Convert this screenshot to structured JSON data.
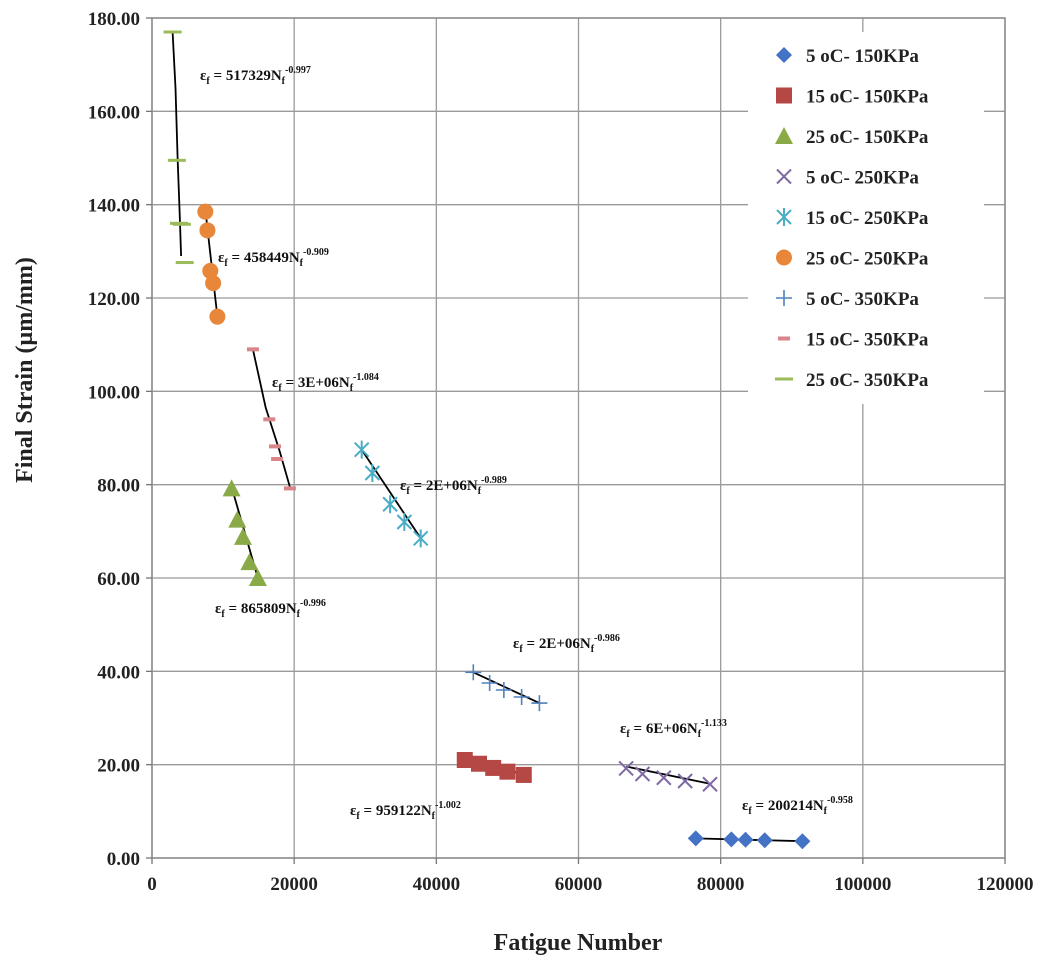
{
  "chart_data": {
    "type": "scatter",
    "title": "",
    "xlabel": "Fatigue Number",
    "ylabel": "Final Strain (µm/mm)",
    "xlim": [
      0,
      120000
    ],
    "ylim": [
      0,
      180
    ],
    "x_ticks": [
      "0",
      "20000",
      "40000",
      "60000",
      "80000",
      "100000",
      "120000"
    ],
    "y_ticks": [
      "0.00",
      "20.00",
      "40.00",
      "60.00",
      "80.00",
      "100.00",
      "120.00",
      "140.00",
      "160.00",
      "180.00"
    ],
    "grid": true,
    "legend_position": "top-right",
    "series": [
      {
        "name": "5 oC- 150KPa",
        "marker": "diamond",
        "color": "#4472c4",
        "x": [
          76500,
          81500,
          83500,
          86200,
          91500
        ],
        "y": [
          4.2,
          4.0,
          3.9,
          3.8,
          3.6
        ],
        "trend": {
          "x": [
            76500,
            91500
          ],
          "y": [
            4.2,
            3.6
          ]
        },
        "equation": {
          "coef": "200214",
          "exp": "-0.958"
        }
      },
      {
        "name": "15 oC- 150KPa",
        "marker": "square",
        "color": "#b54745",
        "x": [
          44000,
          46000,
          48000,
          50000,
          52300
        ],
        "y": [
          21.0,
          20.2,
          19.3,
          18.5,
          17.8
        ],
        "trend": {
          "x": [
            44000,
            52300
          ],
          "y": [
            21.3,
            17.9
          ]
        },
        "equation": {
          "coef": "959122",
          "exp": "-1.002"
        }
      },
      {
        "name": "25 oC- 150KPa",
        "marker": "triangle",
        "color": "#8aa947",
        "x": [
          11200,
          12000,
          12800,
          13700,
          14900
        ],
        "y": [
          79.2,
          72.5,
          68.8,
          63.4,
          60.0
        ],
        "trend": {
          "x": [
            11200,
            14900
          ],
          "y": [
            79.5,
            60.0
          ]
        },
        "equation": {
          "coef": "865809",
          "exp": "-0.996"
        }
      },
      {
        "name": "5 oC- 250KPa",
        "marker": "x",
        "color": "#7f6aa3",
        "x": [
          66700,
          69000,
          72000,
          75000,
          78500
        ],
        "y": [
          19.2,
          18.0,
          17.2,
          16.5,
          15.8
        ],
        "trend": {
          "x": [
            66700,
            78500
          ],
          "y": [
            19.6,
            15.9
          ]
        },
        "equation": {
          "coef": "6E+06",
          "exp": "-1.133"
        }
      },
      {
        "name": "15 oC- 250KPa",
        "marker": "star",
        "color": "#4bacc6",
        "x": [
          29500,
          31000,
          33500,
          35500,
          37800
        ],
        "y": [
          87.5,
          82.5,
          75.8,
          72.0,
          68.5
        ],
        "trend": {
          "x": [
            29500,
            37800
          ],
          "y": [
            87.5,
            68.5
          ]
        },
        "equation": {
          "coef": "2E+06",
          "exp": "-0.989"
        }
      },
      {
        "name": "25 oC- 250KPa",
        "marker": "circle",
        "color": "#e8863a",
        "x": [
          7500,
          7800,
          8200,
          8600,
          9200
        ],
        "y": [
          138.5,
          134.5,
          125.8,
          123.2,
          116.0
        ],
        "trend": {
          "x": [
            7500,
            9200
          ],
          "y": [
            139.0,
            116.0
          ]
        },
        "equation": {
          "coef": "458449",
          "exp": "-0.909"
        }
      },
      {
        "name": "5 oC- 350KPa",
        "marker": "plus",
        "color": "#4f81bd",
        "x": [
          45200,
          47500,
          49500,
          52000,
          54500
        ],
        "y": [
          39.8,
          37.5,
          36.0,
          34.5,
          33.2
        ],
        "trend": {
          "x": [
            45200,
            54500
          ],
          "y": [
            39.8,
            33.2
          ]
        },
        "equation": {
          "coef": "2E+06",
          "exp": "-0.986"
        }
      },
      {
        "name": "15 oC- 350KPa",
        "marker": "dash",
        "color": "#d9868a",
        "x": [
          14200,
          16500,
          17300,
          17600,
          19400
        ],
        "y": [
          109.0,
          94.0,
          88.2,
          85.5,
          79.2
        ],
        "trend": {
          "x": [
            14200,
            16000,
            18000,
            19400
          ],
          "y": [
            109.0,
            96.5,
            87.0,
            79.5
          ]
        },
        "equation": {
          "coef": "3E+06",
          "exp": "-1.084"
        }
      },
      {
        "name": "25 oC- 350KPa",
        "marker": "hline",
        "color": "#9bbb59",
        "x": [
          2900,
          3500,
          3800,
          4200,
          4600
        ],
        "y": [
          177.0,
          149.5,
          136.0,
          135.8,
          127.6
        ],
        "trend": {
          "x": [
            2900,
            3300,
            3600,
            3900,
            4100
          ],
          "y": [
            177.0,
            165.0,
            150.0,
            138.0,
            129.0
          ]
        },
        "equation": {
          "coef": "517329",
          "exp": "-0.997"
        }
      }
    ]
  }
}
